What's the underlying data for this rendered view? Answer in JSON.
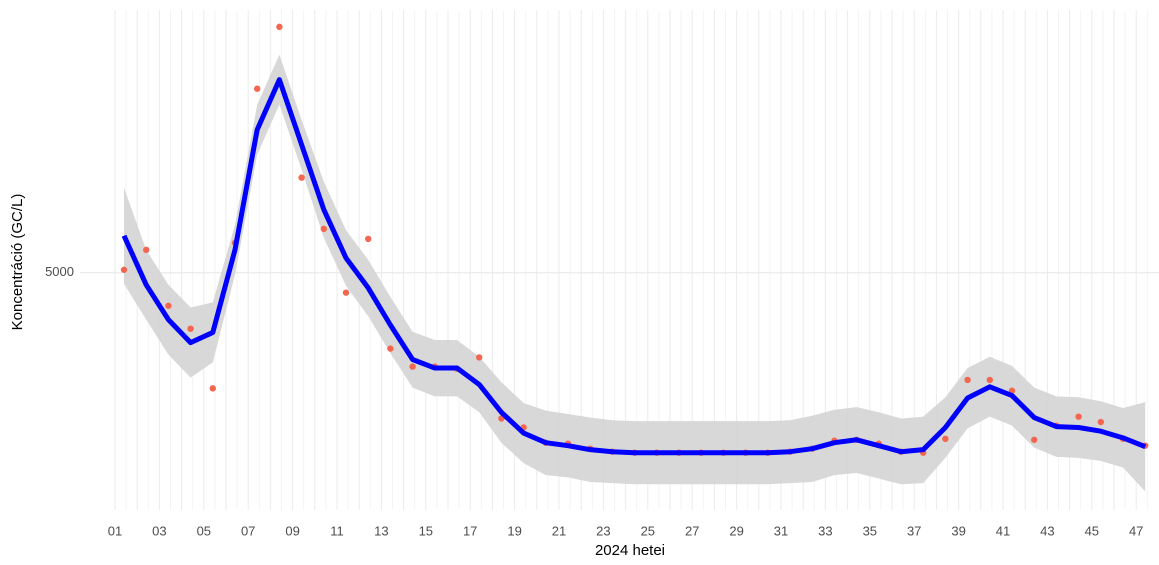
{
  "chart_data": {
    "type": "scatter-smooth",
    "x_label": "2024 hetei",
    "y_label": "Koncentráció (GC/L)",
    "categories": [
      "01",
      null,
      "03",
      null,
      "05",
      null,
      "07",
      null,
      "09",
      null,
      "11",
      null,
      "13",
      null,
      "15",
      null,
      "17",
      null,
      "19",
      null,
      "21",
      null,
      "23",
      null,
      "25",
      null,
      "27",
      null,
      "29",
      null,
      "31",
      null,
      "33",
      null,
      "35",
      null,
      "37",
      null,
      "39",
      null,
      "41",
      null,
      "43",
      null,
      "45",
      null,
      "47"
    ],
    "log_scale": true,
    "grid": true,
    "ylim": [
      1900,
      14600
    ],
    "yticks": [
      5000
    ],
    "points": {
      "color": "#f4664f",
      "values": [
        5061,
        5490,
        4370,
        3980,
        3120,
        5650,
        10590,
        13630,
        7370,
        5980,
        4610,
        5740,
        3670,
        3410,
        3410,
        3380,
        3540,
        2760,
        2660,
        2500,
        2490,
        2440,
        2410,
        2400,
        2400,
        2400,
        2400,
        2400,
        2400,
        2400,
        2410,
        2440,
        2520,
        2530,
        2490,
        2410,
        2400,
        2540,
        3230,
        3230,
        3090,
        2530,
        2680,
        2780,
        2720,
        2540,
        2470
      ]
    },
    "smooth": {
      "color": "#0000ff",
      "band_color": "#d4d4d4",
      "values": [
        5815,
        4760,
        4130,
        3760,
        3920,
        5490,
        8960,
        10990,
        8430,
        6470,
        5310,
        4700,
        4040,
        3510,
        3390,
        3390,
        3170,
        2830,
        2600,
        2500,
        2470,
        2430,
        2410,
        2400,
        2400,
        2400,
        2400,
        2400,
        2400,
        2400,
        2410,
        2440,
        2500,
        2530,
        2470,
        2410,
        2430,
        2660,
        3000,
        3140,
        3030,
        2770,
        2670,
        2660,
        2620,
        2550,
        2460
      ],
      "upper": [
        7070,
        5490,
        4760,
        4340,
        4430,
        6080,
        9920,
        12170,
        9330,
        7250,
        5950,
        5270,
        4530,
        3930,
        3800,
        3800,
        3550,
        3200,
        2940,
        2850,
        2810,
        2770,
        2740,
        2730,
        2730,
        2730,
        2730,
        2730,
        2730,
        2730,
        2740,
        2790,
        2860,
        2890,
        2830,
        2760,
        2780,
        3010,
        3390,
        3550,
        3420,
        3130,
        3020,
        3010,
        2960,
        2880,
        2950
      ],
      "lower": [
        4780,
        4130,
        3580,
        3260,
        3470,
        4960,
        8090,
        9930,
        7620,
        5770,
        4740,
        4190,
        3600,
        3130,
        3020,
        3020,
        2830,
        2500,
        2300,
        2190,
        2170,
        2130,
        2120,
        2110,
        2110,
        2110,
        2110,
        2110,
        2110,
        2110,
        2120,
        2130,
        2190,
        2210,
        2160,
        2110,
        2120,
        2350,
        2650,
        2780,
        2680,
        2450,
        2360,
        2350,
        2320,
        2260,
        2050
      ]
    }
  }
}
